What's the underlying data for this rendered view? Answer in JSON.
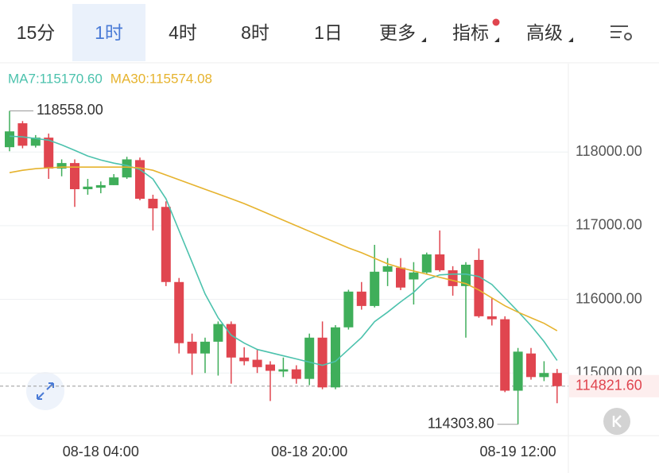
{
  "tabs": [
    {
      "label": "15分"
    },
    {
      "label": "1时",
      "selected": true
    },
    {
      "label": "4时"
    },
    {
      "label": "8时"
    },
    {
      "label": "1日"
    },
    {
      "label": "更多",
      "menu": true
    },
    {
      "label": "指标",
      "menu": true,
      "dot": true
    },
    {
      "label": "高级",
      "menu": true
    }
  ],
  "chart_data": {
    "type": "candlestick",
    "categories": [
      null,
      null,
      null,
      null,
      null,
      null,
      null,
      "08-18 04:00",
      null,
      null,
      null,
      null,
      null,
      null,
      null,
      null,
      null,
      null,
      null,
      null,
      null,
      null,
      null,
      "08-18 20:00",
      null,
      null,
      null,
      null,
      null,
      null,
      null,
      null,
      null,
      null,
      null,
      null,
      null,
      null,
      null,
      "08-19 12:00",
      null,
      null,
      null
    ],
    "open": [
      118065,
      118390,
      118085,
      118195,
      117775,
      117850,
      117495,
      117515,
      117550,
      117655,
      117890,
      117365,
      117255,
      116235,
      115425,
      115265,
      115425,
      115665,
      115210,
      115180,
      115115,
      115020,
      115050,
      114920,
      115480,
      114805,
      115620,
      116105,
      115910,
      116375,
      116430,
      116270,
      116365,
      116610,
      116395,
      116180,
      116535,
      115770,
      115730,
      114760,
      115265,
      114945,
      115000
    ],
    "high": [
      118558,
      118420,
      118230,
      118250,
      117900,
      117900,
      117635,
      117600,
      117700,
      117935,
      117925,
      117420,
      117330,
      116290,
      115535,
      115480,
      115700,
      115700,
      115350,
      115320,
      115160,
      115210,
      115105,
      115535,
      115700,
      115650,
      116130,
      116235,
      116740,
      116560,
      116560,
      116505,
      116635,
      116935,
      116450,
      116505,
      116690,
      116020,
      115770,
      115340,
      115340,
      115160,
      115055
    ],
    "low": [
      118010,
      118050,
      118060,
      117635,
      117670,
      117255,
      117420,
      117440,
      117550,
      117635,
      117345,
      116935,
      116180,
      115265,
      114975,
      115000,
      114965,
      114855,
      115105,
      115000,
      114620,
      114945,
      114855,
      114835,
      114780,
      114780,
      115590,
      115860,
      115890,
      116180,
      116125,
      115930,
      116345,
      116375,
      116050,
      115480,
      115750,
      115645,
      114740,
      114303.8,
      114910,
      114890,
      114590
    ],
    "close": [
      118280,
      118085,
      118195,
      117775,
      117850,
      117495,
      117530,
      117550,
      117655,
      117900,
      117365,
      117235,
      116235,
      115405,
      115265,
      115425,
      115665,
      115210,
      115160,
      115080,
      115030,
      115050,
      114920,
      115480,
      114805,
      115620,
      116105,
      115910,
      116375,
      116450,
      116160,
      116365,
      116610,
      116395,
      116180,
      116470,
      115770,
      115730,
      114760,
      115290,
      114945,
      115000,
      114821.6
    ],
    "up_color": "#3fae5a",
    "down_color": "#e0454f",
    "series": [
      {
        "name": "MA7:115170.60",
        "color": "#4cc2ad",
        "values": [
          118215,
          118205,
          118183,
          118161,
          118097,
          118022,
          117946,
          117892,
          117849,
          117817,
          117763,
          117634,
          117365,
          116934,
          116504,
          116073,
          115750,
          115514,
          115406,
          115320,
          115277,
          115234,
          115191,
          115148,
          115105,
          115158,
          115320,
          115482,
          115697,
          115826,
          115966,
          116095,
          116267,
          116332,
          116342,
          116342,
          116310,
          116202,
          116019,
          115836,
          115643,
          115427,
          115170.6
        ]
      },
      {
        "name": "MA30:115574.08",
        "color": "#e6b32e",
        "values": [
          117720,
          117752,
          117774,
          117785,
          117795,
          117795,
          117795,
          117795,
          117795,
          117795,
          117785,
          117752,
          117688,
          117623,
          117559,
          117494,
          117430,
          117365,
          117300,
          117225,
          117150,
          117074,
          116999,
          116924,
          116848,
          116773,
          116698,
          116633,
          116558,
          116482,
          116429,
          116385,
          116342,
          116299,
          116256,
          116213,
          116127,
          116019,
          115912,
          115826,
          115750,
          115675,
          115574.08
        ]
      }
    ],
    "ylim": [
      114150,
      119200
    ],
    "yticks": [
      {
        "value": 115000,
        "label": "115000.00"
      },
      {
        "value": 116000,
        "label": "116000.00"
      },
      {
        "value": 117000,
        "label": "117000.00"
      },
      {
        "value": 118000,
        "label": "118000.00"
      }
    ],
    "grid": true,
    "max_label": {
      "value": 118558,
      "label": "118558.00"
    },
    "min_label": {
      "value": 114303.8,
      "label": "114303.80"
    },
    "last_price": {
      "value": 114821.6,
      "label": "114821.60"
    }
  }
}
